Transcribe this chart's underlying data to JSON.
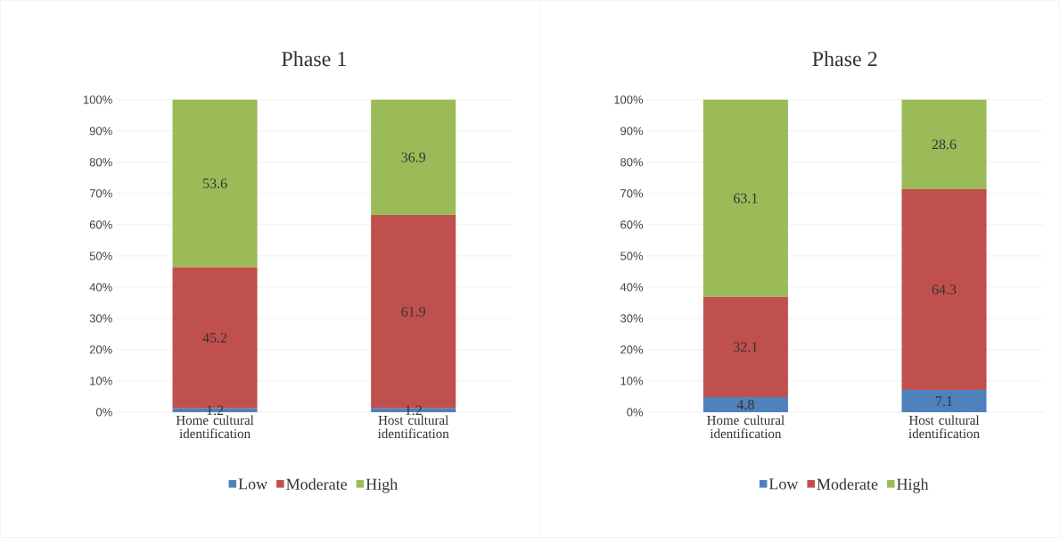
{
  "chart_data": [
    {
      "type": "bar",
      "title": "Phase 1",
      "stacked": true,
      "categories": [
        "Home cultural identification",
        "Host cultural identification"
      ],
      "series": [
        {
          "name": "Low",
          "color": "#4f81bd",
          "values": [
            1.2,
            1.2
          ]
        },
        {
          "name": "Moderate",
          "color": "#c0504d",
          "values": [
            45.2,
            61.9
          ]
        },
        {
          "name": "High",
          "color": "#9bbb59",
          "values": [
            53.6,
            36.9
          ]
        }
      ],
      "ylim": [
        0,
        100
      ],
      "yticks": [
        {
          "value": 0,
          "label": "0%"
        },
        {
          "value": 10,
          "label": "10%"
        },
        {
          "value": 20,
          "label": "20%"
        },
        {
          "value": 30,
          "label": "30%"
        },
        {
          "value": 40,
          "label": "40%"
        },
        {
          "value": 50,
          "label": "50%"
        },
        {
          "value": 60,
          "label": "60%"
        },
        {
          "value": 70,
          "label": "70%"
        },
        {
          "value": 80,
          "label": "80%"
        },
        {
          "value": 90,
          "label": "90%"
        },
        {
          "value": 100,
          "label": "100%"
        }
      ],
      "grid": "y",
      "legend": "bottom",
      "data_labels": true
    },
    {
      "type": "bar",
      "title": "Phase 2",
      "stacked": true,
      "categories": [
        "Home cultural identification",
        "Host cultural identification"
      ],
      "series": [
        {
          "name": "Low",
          "color": "#4f81bd",
          "values": [
            4.8,
            7.1
          ]
        },
        {
          "name": "Moderate",
          "color": "#c0504d",
          "values": [
            32.1,
            64.3
          ]
        },
        {
          "name": "High",
          "color": "#9bbb59",
          "values": [
            63.1,
            28.6
          ]
        }
      ],
      "ylim": [
        0,
        100
      ],
      "yticks": [
        {
          "value": 0,
          "label": "0%"
        },
        {
          "value": 10,
          "label": "10%"
        },
        {
          "value": 20,
          "label": "20%"
        },
        {
          "value": 30,
          "label": "30%"
        },
        {
          "value": 40,
          "label": "40%"
        },
        {
          "value": 50,
          "label": "50%"
        },
        {
          "value": 60,
          "label": "60%"
        },
        {
          "value": 70,
          "label": "70%"
        },
        {
          "value": 80,
          "label": "80%"
        },
        {
          "value": 90,
          "label": "90%"
        },
        {
          "value": 100,
          "label": "100%"
        }
      ],
      "grid": "y",
      "legend": "bottom",
      "data_labels": true
    }
  ]
}
